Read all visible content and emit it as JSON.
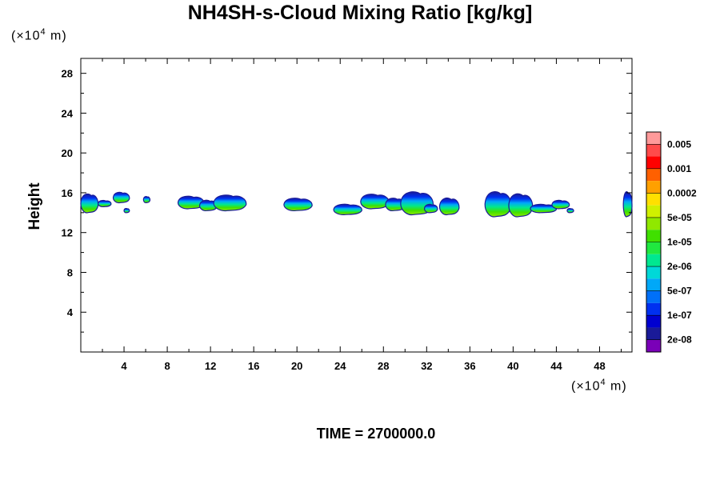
{
  "chart_data": {
    "type": "heatmap",
    "title": "NH4SH-s-Cloud Mixing Ratio [kg/kg]",
    "ylabel": "Height",
    "xlabel": "",
    "x_unit_base": "(×10",
    "x_unit_exp": "4",
    "x_unit_tail": " m)",
    "y_unit_base": "(×10",
    "y_unit_exp": "4",
    "y_unit_tail": " m)",
    "xlim": [
      0,
      51
    ],
    "ylim": [
      0,
      29.5
    ],
    "x_ticks": [
      "4",
      "8",
      "12",
      "16",
      "20",
      "24",
      "28",
      "32",
      "36",
      "40",
      "44",
      "48"
    ],
    "x_tick_values": [
      4,
      8,
      12,
      16,
      20,
      24,
      28,
      32,
      36,
      40,
      44,
      48
    ],
    "y_ticks": [
      "4",
      "8",
      "12",
      "16",
      "20",
      "24",
      "28"
    ],
    "y_tick_values": [
      4,
      8,
      12,
      16,
      20,
      24,
      28
    ],
    "colorbar": {
      "labels": [
        "0.005",
        "0.001",
        "0.0002",
        "5e-05",
        "1e-05",
        "2e-06",
        "5e-07",
        "1e-07",
        "2e-08"
      ],
      "colors_top_to_bottom": [
        "#ff9a9a",
        "#ff4a4a",
        "#ff0000",
        "#ff6000",
        "#ffa000",
        "#ffe000",
        "#d0f000",
        "#90e800",
        "#40e000",
        "#20e840",
        "#00e890",
        "#00d8d8",
        "#00a8f8",
        "#0070f8",
        "#0030f0",
        "#0000d0",
        "#1a1a98",
        "#7a00b8"
      ]
    },
    "cloud_blobs": [
      {
        "x": 0.0,
        "w": 1.6,
        "top": 15.8,
        "bot": 14.0
      },
      {
        "x": 1.6,
        "w": 1.2,
        "top": 15.2,
        "bot": 14.6
      },
      {
        "x": 3.0,
        "w": 1.5,
        "top": 16.0,
        "bot": 15.0
      },
      {
        "x": 4.0,
        "w": 0.5,
        "top": 14.4,
        "bot": 14.0
      },
      {
        "x": 5.8,
        "w": 0.6,
        "top": 15.6,
        "bot": 15.0
      },
      {
        "x": 9.0,
        "w": 2.4,
        "top": 15.6,
        "bot": 14.4
      },
      {
        "x": 11.0,
        "w": 1.6,
        "top": 15.2,
        "bot": 14.2
      },
      {
        "x": 12.3,
        "w": 3.0,
        "top": 15.7,
        "bot": 14.2
      },
      {
        "x": 18.8,
        "w": 2.6,
        "top": 15.4,
        "bot": 14.2
      },
      {
        "x": 23.4,
        "w": 2.6,
        "top": 14.8,
        "bot": 13.8
      },
      {
        "x": 25.9,
        "w": 2.6,
        "top": 15.8,
        "bot": 14.4
      },
      {
        "x": 28.2,
        "w": 1.8,
        "top": 15.4,
        "bot": 14.2
      },
      {
        "x": 29.6,
        "w": 3.0,
        "top": 16.0,
        "bot": 13.8
      },
      {
        "x": 31.8,
        "w": 1.2,
        "top": 14.8,
        "bot": 14.0
      },
      {
        "x": 33.2,
        "w": 1.8,
        "top": 15.4,
        "bot": 13.8
      },
      {
        "x": 37.4,
        "w": 2.4,
        "top": 16.0,
        "bot": 13.6
      },
      {
        "x": 39.6,
        "w": 2.2,
        "top": 15.8,
        "bot": 13.6
      },
      {
        "x": 41.6,
        "w": 2.4,
        "top": 14.8,
        "bot": 14.0
      },
      {
        "x": 43.6,
        "w": 1.6,
        "top": 15.2,
        "bot": 14.4
      },
      {
        "x": 45.0,
        "w": 0.6,
        "top": 14.4,
        "bot": 14.0
      },
      {
        "x": 50.2,
        "w": 0.8,
        "top": 16.0,
        "bot": 13.6
      }
    ]
  },
  "footer": {
    "time_label": "TIME = 2700000.0"
  }
}
